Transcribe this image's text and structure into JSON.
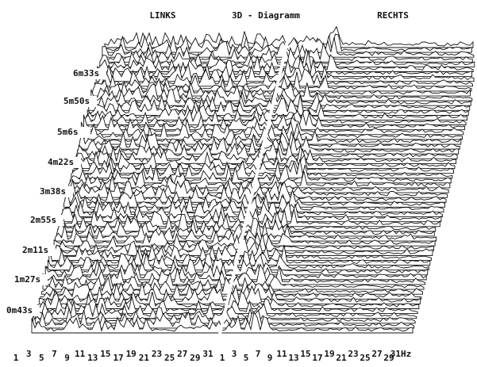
{
  "header": {
    "left": "LINKS",
    "title": "3D - Diagramm",
    "right": "RECHTS"
  },
  "time_labels": [
    "6m33s",
    "5m50s",
    "5m6s",
    "4m22s",
    "3m38s",
    "2m55s",
    "2m11s",
    "1m27s",
    "0m43s"
  ],
  "x_labels_left": [
    "1",
    "3",
    "5",
    "7",
    "9",
    "11",
    "13",
    "15",
    "17",
    "19",
    "21",
    "23",
    "25",
    "27",
    "29",
    "31"
  ],
  "x_labels_right": [
    "1",
    "3",
    "5",
    "7",
    "9",
    "11",
    "13",
    "15",
    "17",
    "19",
    "21",
    "23",
    "25",
    "27",
    "29",
    "31Hz"
  ]
}
